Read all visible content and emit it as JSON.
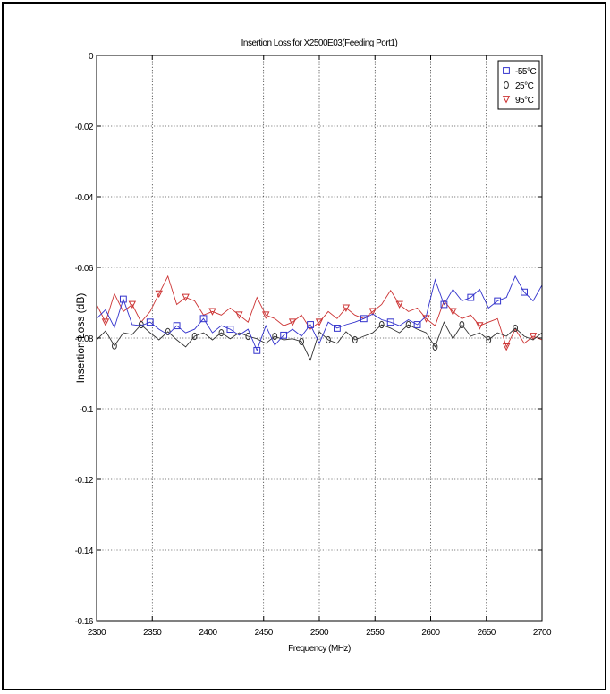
{
  "chart_data": {
    "type": "line",
    "title": "Insertion Loss for X2500E03(Feeding Port1)",
    "xlabel": "Frequency (MHz)",
    "ylabel": "Insertion Loss (dB)",
    "xlim": [
      2300,
      2700
    ],
    "ylim": [
      -0.16,
      0
    ],
    "xticks": [
      2300,
      2350,
      2400,
      2450,
      2500,
      2550,
      2600,
      2650,
      2700
    ],
    "xtick_labels": [
      "2300",
      "2350",
      "2400",
      "2450",
      "2500",
      "2550",
      "2600",
      "2650",
      "2700"
    ],
    "yticks": [
      0,
      -0.02,
      -0.04,
      -0.06,
      -0.08,
      -0.1,
      -0.12,
      -0.14,
      -0.16
    ],
    "ytick_labels": [
      "0",
      "-0.02",
      "-0.04",
      "-0.06",
      "-0.08",
      "-0.1",
      "-0.12",
      "-0.14",
      "-0.16"
    ],
    "grid": true,
    "legend_position": "top-right",
    "x": [
      2300,
      2308,
      2316,
      2324,
      2332,
      2340,
      2348,
      2356,
      2364,
      2372,
      2380,
      2388,
      2396,
      2404,
      2412,
      2420,
      2428,
      2436,
      2444,
      2452,
      2460,
      2468,
      2476,
      2484,
      2492,
      2500,
      2508,
      2516,
      2524,
      2532,
      2540,
      2548,
      2556,
      2564,
      2572,
      2580,
      2588,
      2596,
      2604,
      2612,
      2620,
      2628,
      2636,
      2644,
      2652,
      2660,
      2668,
      2676,
      2684,
      2692,
      2700
    ],
    "series": [
      {
        "name": "-55°C",
        "color": "#3333cc",
        "marker": "square",
        "values": [
          -0.0745,
          -0.072,
          -0.077,
          -0.069,
          -0.0762,
          -0.0765,
          -0.0755,
          -0.0775,
          -0.079,
          -0.0765,
          -0.0785,
          -0.0775,
          -0.0745,
          -0.0785,
          -0.0765,
          -0.0775,
          -0.0792,
          -0.0775,
          -0.0835,
          -0.0765,
          -0.082,
          -0.0792,
          -0.0775,
          -0.0795,
          -0.0762,
          -0.0815,
          -0.0755,
          -0.0772,
          -0.0762,
          -0.0755,
          -0.0745,
          -0.0732,
          -0.0748,
          -0.0755,
          -0.0765,
          -0.0748,
          -0.0762,
          -0.0738,
          -0.0635,
          -0.0705,
          -0.0662,
          -0.0695,
          -0.0685,
          -0.0662,
          -0.0715,
          -0.0695,
          -0.0685,
          -0.0625,
          -0.067,
          -0.0695,
          -0.065
        ]
      },
      {
        "name": "25°C",
        "color": "#333333",
        "marker": "circle",
        "values": [
          -0.0805,
          -0.078,
          -0.0822,
          -0.0785,
          -0.079,
          -0.0762,
          -0.0785,
          -0.0805,
          -0.0782,
          -0.0805,
          -0.0825,
          -0.0795,
          -0.0785,
          -0.0805,
          -0.0785,
          -0.0802,
          -0.0785,
          -0.0795,
          -0.0802,
          -0.0815,
          -0.0795,
          -0.0805,
          -0.0802,
          -0.081,
          -0.0862,
          -0.0782,
          -0.0805,
          -0.0815,
          -0.0782,
          -0.0805,
          -0.0795,
          -0.0785,
          -0.0762,
          -0.0772,
          -0.0785,
          -0.0762,
          -0.0775,
          -0.0785,
          -0.0825,
          -0.0755,
          -0.0802,
          -0.0762,
          -0.0795,
          -0.0785,
          -0.0805,
          -0.0785,
          -0.0795,
          -0.0772,
          -0.0795,
          -0.0805,
          -0.0785
        ]
      },
      {
        "name": "95°C",
        "color": "#cc3333",
        "marker": "triangle-down",
        "values": [
          -0.0705,
          -0.0755,
          -0.0675,
          -0.0725,
          -0.0705,
          -0.0755,
          -0.0725,
          -0.0675,
          -0.0625,
          -0.0705,
          -0.0685,
          -0.0695,
          -0.0735,
          -0.0725,
          -0.0735,
          -0.0715,
          -0.0735,
          -0.0755,
          -0.0685,
          -0.0735,
          -0.0745,
          -0.0765,
          -0.0755,
          -0.0735,
          -0.0775,
          -0.0755,
          -0.0725,
          -0.0745,
          -0.0715,
          -0.0735,
          -0.0745,
          -0.0725,
          -0.0705,
          -0.0665,
          -0.0705,
          -0.0725,
          -0.0715,
          -0.0745,
          -0.0765,
          -0.0695,
          -0.0725,
          -0.0745,
          -0.0735,
          -0.0765,
          -0.0755,
          -0.0745,
          -0.0825,
          -0.0775,
          -0.0815,
          -0.0795,
          -0.0805
        ]
      }
    ]
  }
}
